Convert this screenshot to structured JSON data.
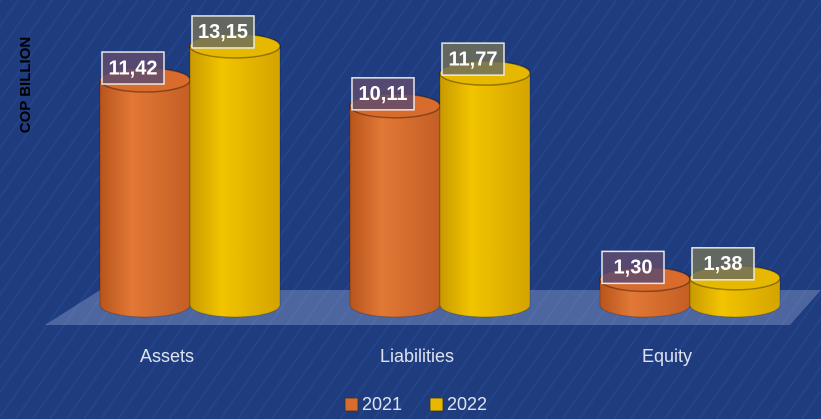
{
  "chart_data": {
    "type": "bar3d",
    "y_axis_label": "COP BILLION",
    "categories": [
      "Assets",
      "Liabilities",
      "Equity"
    ],
    "series": [
      {
        "name": "2021",
        "color": "#d96b2c",
        "values": [
          11.42,
          10.11,
          1.3
        ],
        "value_labels": [
          "11,42",
          "10,11",
          "1,30"
        ]
      },
      {
        "name": "2022",
        "color": "#e6b800",
        "values": [
          13.15,
          11.77,
          1.38
        ],
        "value_labels": [
          "13,15",
          "11,77",
          "1,38"
        ]
      }
    ]
  }
}
